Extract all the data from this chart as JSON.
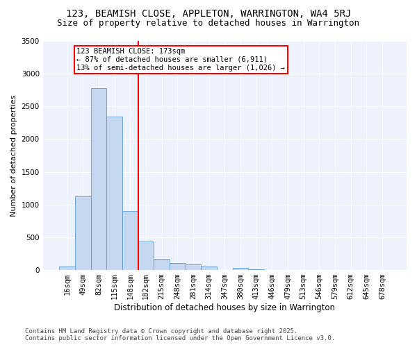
{
  "title1": "123, BEAMISH CLOSE, APPLETON, WARRINGTON, WA4 5RJ",
  "title2": "Size of property relative to detached houses in Warrington",
  "xlabel": "Distribution of detached houses by size in Warrington",
  "ylabel": "Number of detached properties",
  "categories": [
    "16sqm",
    "49sqm",
    "82sqm",
    "115sqm",
    "148sqm",
    "182sqm",
    "215sqm",
    "248sqm",
    "281sqm",
    "314sqm",
    "347sqm",
    "380sqm",
    "413sqm",
    "446sqm",
    "479sqm",
    "513sqm",
    "546sqm",
    "579sqm",
    "612sqm",
    "645sqm",
    "678sqm"
  ],
  "values": [
    50,
    1130,
    2780,
    2340,
    900,
    440,
    170,
    105,
    90,
    55,
    0,
    35,
    10,
    5,
    0,
    0,
    0,
    0,
    0,
    0,
    0
  ],
  "bar_color": "#c5d8f0",
  "bar_edge_color": "#5b9bd5",
  "vline_color": "red",
  "vline_x_index": 5,
  "annotation_text": "123 BEAMISH CLOSE: 173sqm\n← 87% of detached houses are smaller (6,911)\n13% of semi-detached houses are larger (1,026) →",
  "annotation_box_color": "white",
  "annotation_box_edge_color": "red",
  "ylim": [
    0,
    3500
  ],
  "yticks": [
    0,
    500,
    1000,
    1500,
    2000,
    2500,
    3000,
    3500
  ],
  "bg_color": "#eef2fc",
  "grid_color": "#ffffff",
  "footer1": "Contains HM Land Registry data © Crown copyright and database right 2025.",
  "footer2": "Contains public sector information licensed under the Open Government Licence v3.0.",
  "title1_fontsize": 10,
  "title2_fontsize": 9,
  "xlabel_fontsize": 8.5,
  "ylabel_fontsize": 8,
  "tick_fontsize": 7.5,
  "annotation_fontsize": 7.5,
  "footer_fontsize": 6.5
}
